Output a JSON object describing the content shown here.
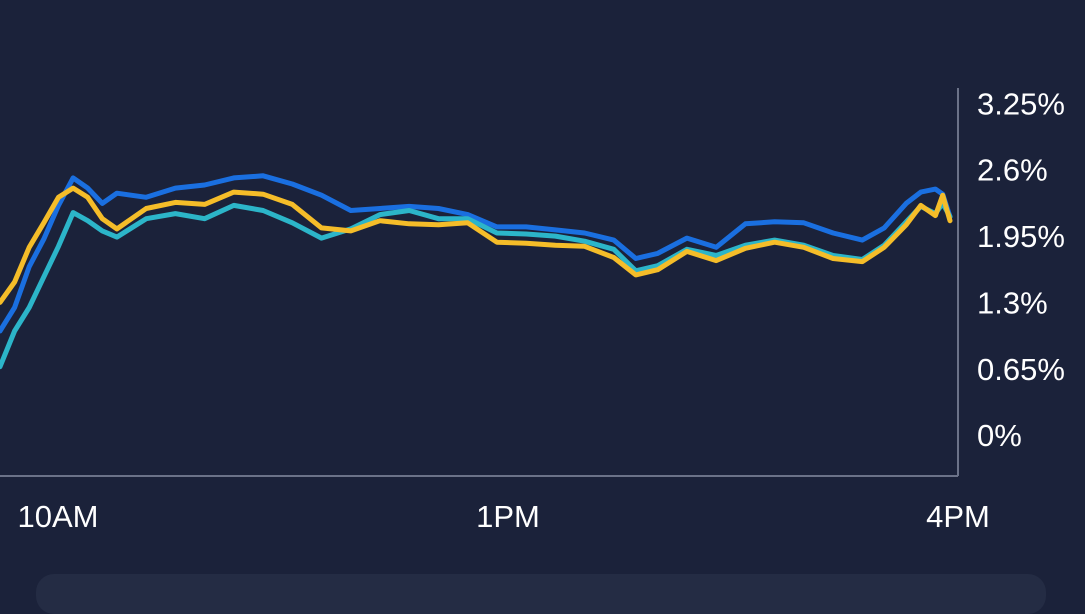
{
  "chart_data": {
    "type": "line",
    "title": "",
    "xlabel": "",
    "ylabel": "",
    "x_ticks": [
      "10AM",
      "1PM",
      "4PM"
    ],
    "y_ticks": [
      "0%",
      "0.65%",
      "1.3%",
      "1.95%",
      "2.6%",
      "3.25%"
    ],
    "y_tick_values": [
      0,
      0.65,
      1.3,
      1.95,
      2.6,
      3.25
    ],
    "ylim": [
      -0.4,
      3.4
    ],
    "x_unit": "hours of trading day (9.5 = 9:30AM, 16 = 4PM)",
    "xlim": [
      9.5,
      16
    ],
    "grid": false,
    "legend": "none",
    "colors": {
      "background": "#1b223a",
      "axis": "#6b7288",
      "text": "#ffffff",
      "series": [
        "#1a6fe0",
        "#2cb5c9",
        "#f5bd29"
      ]
    },
    "series": [
      {
        "values": [
          [
            9.5,
            1.02
          ],
          [
            9.6,
            1.25
          ],
          [
            9.7,
            1.65
          ],
          [
            9.8,
            1.92
          ],
          [
            9.9,
            2.25
          ],
          [
            10.0,
            2.52
          ],
          [
            10.1,
            2.42
          ],
          [
            10.2,
            2.27
          ],
          [
            10.3,
            2.37
          ],
          [
            10.5,
            2.33
          ],
          [
            10.7,
            2.42
          ],
          [
            10.9,
            2.45
          ],
          [
            11.1,
            2.52
          ],
          [
            11.3,
            2.54
          ],
          [
            11.5,
            2.46
          ],
          [
            11.7,
            2.35
          ],
          [
            11.9,
            2.2
          ],
          [
            12.1,
            2.22
          ],
          [
            12.3,
            2.24
          ],
          [
            12.5,
            2.22
          ],
          [
            12.7,
            2.16
          ],
          [
            12.9,
            2.04
          ],
          [
            13.1,
            2.04
          ],
          [
            13.3,
            2.01
          ],
          [
            13.5,
            1.98
          ],
          [
            13.7,
            1.91
          ],
          [
            13.85,
            1.73
          ],
          [
            14.0,
            1.78
          ],
          [
            14.2,
            1.93
          ],
          [
            14.4,
            1.84
          ],
          [
            14.6,
            2.07
          ],
          [
            14.8,
            2.09
          ],
          [
            15.0,
            2.08
          ],
          [
            15.2,
            1.98
          ],
          [
            15.4,
            1.91
          ],
          [
            15.55,
            2.03
          ],
          [
            15.7,
            2.27
          ],
          [
            15.8,
            2.38
          ],
          [
            15.9,
            2.41
          ],
          [
            15.95,
            2.36
          ],
          [
            16.0,
            2.14
          ]
        ]
      },
      {
        "values": [
          [
            9.5,
            0.67
          ],
          [
            9.6,
            1.02
          ],
          [
            9.7,
            1.25
          ],
          [
            9.8,
            1.55
          ],
          [
            9.9,
            1.85
          ],
          [
            10.0,
            2.18
          ],
          [
            10.1,
            2.1
          ],
          [
            10.2,
            2.0
          ],
          [
            10.3,
            1.94
          ],
          [
            10.5,
            2.12
          ],
          [
            10.7,
            2.17
          ],
          [
            10.9,
            2.12
          ],
          [
            11.1,
            2.25
          ],
          [
            11.3,
            2.2
          ],
          [
            11.5,
            2.08
          ],
          [
            11.7,
            1.93
          ],
          [
            11.9,
            2.02
          ],
          [
            12.1,
            2.16
          ],
          [
            12.3,
            2.2
          ],
          [
            12.5,
            2.12
          ],
          [
            12.7,
            2.12
          ],
          [
            12.9,
            1.98
          ],
          [
            13.1,
            1.97
          ],
          [
            13.3,
            1.95
          ],
          [
            13.5,
            1.9
          ],
          [
            13.7,
            1.82
          ],
          [
            13.85,
            1.61
          ],
          [
            14.0,
            1.66
          ],
          [
            14.2,
            1.82
          ],
          [
            14.4,
            1.76
          ],
          [
            14.6,
            1.86
          ],
          [
            14.8,
            1.91
          ],
          [
            15.0,
            1.86
          ],
          [
            15.2,
            1.76
          ],
          [
            15.4,
            1.72
          ],
          [
            15.55,
            1.86
          ],
          [
            15.7,
            2.09
          ],
          [
            15.8,
            2.24
          ],
          [
            15.9,
            2.17
          ],
          [
            15.95,
            2.27
          ],
          [
            16.0,
            2.14
          ]
        ]
      },
      {
        "values": [
          [
            9.5,
            1.3
          ],
          [
            9.6,
            1.5
          ],
          [
            9.7,
            1.84
          ],
          [
            9.8,
            2.08
          ],
          [
            9.9,
            2.33
          ],
          [
            10.0,
            2.42
          ],
          [
            10.1,
            2.33
          ],
          [
            10.2,
            2.12
          ],
          [
            10.3,
            2.02
          ],
          [
            10.5,
            2.22
          ],
          [
            10.7,
            2.28
          ],
          [
            10.9,
            2.26
          ],
          [
            11.1,
            2.38
          ],
          [
            11.3,
            2.36
          ],
          [
            11.5,
            2.26
          ],
          [
            11.7,
            2.03
          ],
          [
            11.9,
            2.0
          ],
          [
            12.1,
            2.1
          ],
          [
            12.3,
            2.07
          ],
          [
            12.5,
            2.06
          ],
          [
            12.7,
            2.08
          ],
          [
            12.9,
            1.89
          ],
          [
            13.1,
            1.88
          ],
          [
            13.3,
            1.86
          ],
          [
            13.5,
            1.85
          ],
          [
            13.7,
            1.74
          ],
          [
            13.85,
            1.57
          ],
          [
            14.0,
            1.62
          ],
          [
            14.2,
            1.8
          ],
          [
            14.4,
            1.71
          ],
          [
            14.6,
            1.83
          ],
          [
            14.8,
            1.89
          ],
          [
            15.0,
            1.84
          ],
          [
            15.2,
            1.73
          ],
          [
            15.4,
            1.7
          ],
          [
            15.55,
            1.84
          ],
          [
            15.7,
            2.06
          ],
          [
            15.8,
            2.25
          ],
          [
            15.9,
            2.15
          ],
          [
            15.95,
            2.35
          ],
          [
            16.0,
            2.1
          ]
        ]
      }
    ]
  }
}
